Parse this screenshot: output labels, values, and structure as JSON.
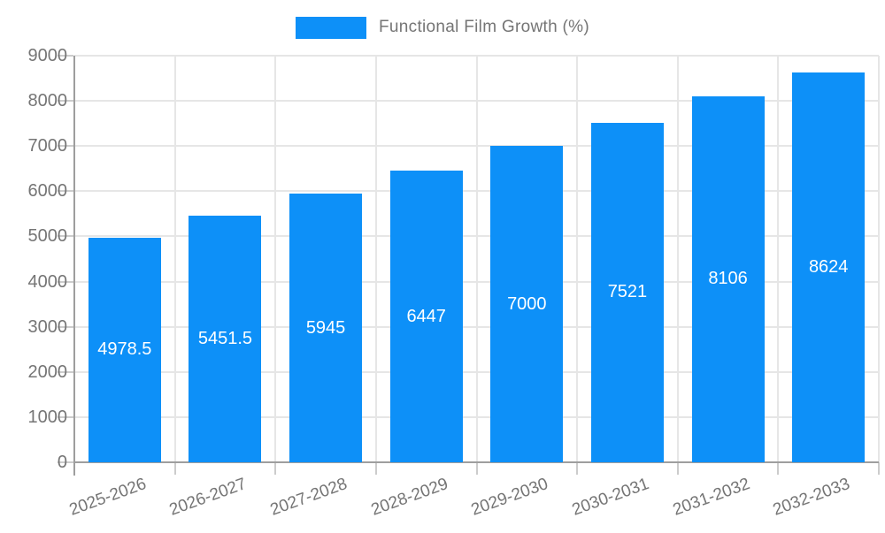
{
  "chart_data": {
    "type": "bar",
    "title": "Functional Film Growth (%)",
    "categories": [
      "2025-2026",
      "2026-2027",
      "2027-2028",
      "2028-2029",
      "2029-2030",
      "2030-2031",
      "2031-2032",
      "2032-2033"
    ],
    "values": [
      4978.5,
      5451.5,
      5945,
      6447,
      7000,
      7521,
      8106,
      8624
    ],
    "value_labels": [
      "4978.5",
      "5451.5",
      "5945",
      "6447",
      "7000",
      "7521",
      "8106",
      "8624"
    ],
    "yticks": [
      0,
      1000,
      2000,
      3000,
      4000,
      5000,
      6000,
      7000,
      8000,
      9000
    ],
    "ylim": [
      0,
      9000
    ],
    "xlabel": "",
    "ylabel": "",
    "grid": true,
    "legend_position": "top-center",
    "colors": {
      "bar": "#0d90f8",
      "grid": "#e6e6e6",
      "axis": "#9e9e9e",
      "tick_mark": "#cccccc",
      "tick_text": "#757575",
      "value_label": "#ffffff",
      "background": "#ffffff"
    }
  }
}
